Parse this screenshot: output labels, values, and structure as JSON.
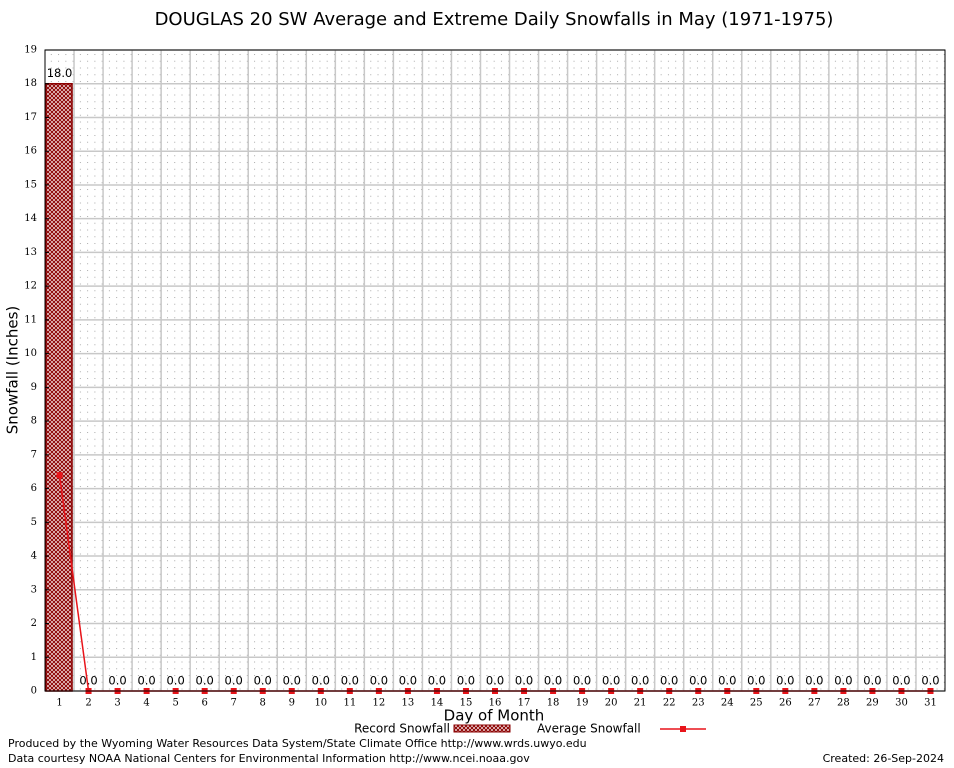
{
  "chart_data": {
    "type": "bar",
    "title": "DOUGLAS 20 SW Average and Extreme Daily Snowfalls in May (1971-1975)",
    "x_label": "Day of Month",
    "y_label": "Snowfall (Inches)",
    "categories": [
      "1",
      "2",
      "3",
      "4",
      "5",
      "6",
      "7",
      "8",
      "9",
      "10",
      "11",
      "12",
      "13",
      "14",
      "15",
      "16",
      "17",
      "18",
      "19",
      "20",
      "21",
      "22",
      "23",
      "24",
      "25",
      "26",
      "27",
      "28",
      "29",
      "30",
      "31"
    ],
    "series": [
      {
        "name": "Record Snowfall",
        "type": "bar",
        "color": "#8b0000",
        "values": [
          18,
          0,
          0,
          0,
          0,
          0,
          0,
          0,
          0,
          0,
          0,
          0,
          0,
          0,
          0,
          0,
          0,
          0,
          0,
          0,
          0,
          0,
          0,
          0,
          0,
          0,
          0,
          0,
          0,
          0,
          0
        ],
        "value_labels": [
          "18.0",
          "0.0",
          "0.0",
          "0.0",
          "0.0",
          "0.0",
          "0.0",
          "0.0",
          "0.0",
          "0.0",
          "0.0",
          "0.0",
          "0.0",
          "0.0",
          "0.0",
          "0.0",
          "0.0",
          "0.0",
          "0.0",
          "0.0",
          "0.0",
          "0.0",
          "0.0",
          "0.0",
          "0.0",
          "0.0",
          "0.0",
          "0.0",
          "0.0",
          "0.0",
          "0.0"
        ]
      },
      {
        "name": "Average Snowfall",
        "type": "line",
        "color": "#e8141a",
        "values": [
          6.4,
          0,
          0,
          0,
          0,
          0,
          0,
          0,
          0,
          0,
          0,
          0,
          0,
          0,
          0,
          0,
          0,
          0,
          0,
          0,
          0,
          0,
          0,
          0,
          0,
          0,
          0,
          0,
          0,
          0,
          0
        ]
      }
    ],
    "ylim": [
      0,
      19
    ],
    "yticks": [
      0,
      1,
      2,
      3,
      4,
      5,
      6,
      7,
      8,
      9,
      10,
      11,
      12,
      13,
      14,
      15,
      16,
      17,
      18,
      19
    ],
    "grid": true,
    "credits": [
      "Produced by the Wyoming Water Resources Data System/State Climate Office http://www.wrds.uwyo.edu",
      "Data courtesy NOAA National Centers for Environmental Information http://www.ncei.noaa.gov"
    ],
    "created": "Created:  26-Sep-2024"
  }
}
